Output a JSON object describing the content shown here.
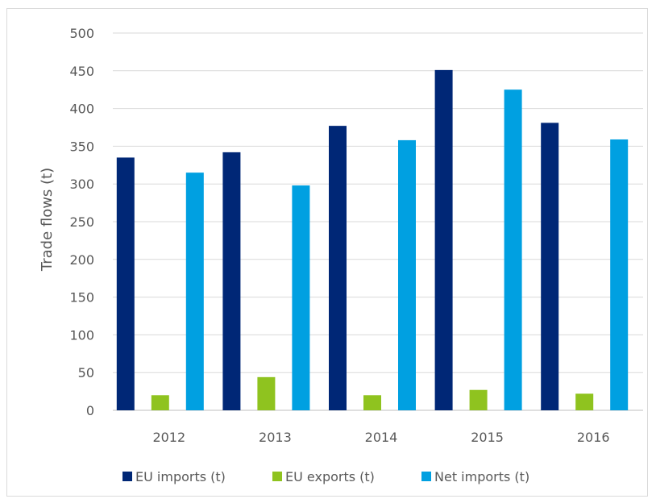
{
  "chart_data": {
    "type": "bar",
    "title": "",
    "xlabel": "",
    "ylabel": "Trade flows (t)",
    "ylim": [
      0,
      500
    ],
    "yticks": [
      0,
      50,
      100,
      150,
      200,
      250,
      300,
      350,
      400,
      450,
      500
    ],
    "grid": true,
    "legend_position": "bottom",
    "categories": [
      "2012",
      "2013",
      "2014",
      "2015",
      "2016"
    ],
    "series": [
      {
        "name": "EU imports (t)",
        "color": "#002776",
        "values": [
          335,
          342,
          377,
          451,
          381
        ]
      },
      {
        "name": "EU exports (t)",
        "color": "#8fc31f",
        "values": [
          20,
          44,
          20,
          27,
          22
        ]
      },
      {
        "name": "Net imports (t)",
        "color": "#00a0e1",
        "values": [
          315,
          298,
          358,
          425,
          359
        ]
      }
    ]
  }
}
